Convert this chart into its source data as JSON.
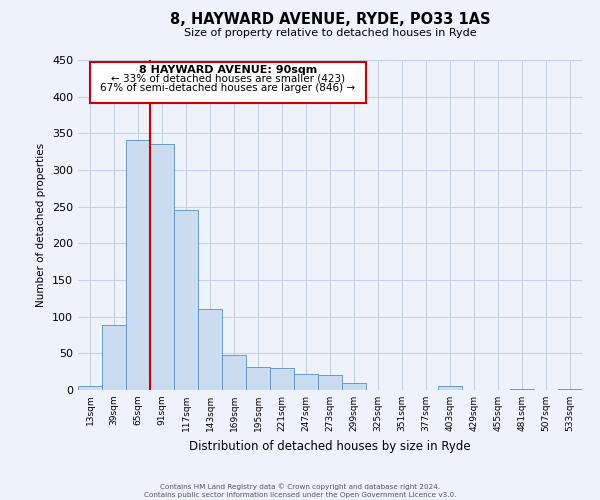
{
  "title": "8, HAYWARD AVENUE, RYDE, PO33 1AS",
  "subtitle": "Size of property relative to detached houses in Ryde",
  "xlabel": "Distribution of detached houses by size in Ryde",
  "ylabel": "Number of detached properties",
  "bar_color": "#ccdcf0",
  "bar_edge_color": "#5590c0",
  "bin_labels": [
    "13sqm",
    "39sqm",
    "65sqm",
    "91sqm",
    "117sqm",
    "143sqm",
    "169sqm",
    "195sqm",
    "221sqm",
    "247sqm",
    "273sqm",
    "299sqm",
    "325sqm",
    "351sqm",
    "377sqm",
    "403sqm",
    "429sqm",
    "455sqm",
    "481sqm",
    "507sqm",
    "533sqm"
  ],
  "bar_heights": [
    5,
    88,
    341,
    335,
    245,
    110,
    48,
    32,
    30,
    22,
    20,
    10,
    0,
    0,
    0,
    5,
    0,
    0,
    2,
    0,
    1
  ],
  "ylim": [
    0,
    450
  ],
  "yticks": [
    0,
    50,
    100,
    150,
    200,
    250,
    300,
    350,
    400,
    450
  ],
  "property_line_x": 3,
  "property_line_label": "8 HAYWARD AVENUE: 90sqm",
  "annotation_line1": "← 33% of detached houses are smaller (423)",
  "annotation_line2": "67% of semi-detached houses are larger (846) →",
  "box_color": "#ffffff",
  "box_edge_color": "#cc0000",
  "vline_color": "#cc0000",
  "footer1": "Contains HM Land Registry data © Crown copyright and database right 2024.",
  "footer2": "Contains public sector information licensed under the Open Government Licence v3.0.",
  "bg_color": "#eef2fa",
  "grid_color": "#c5cfe8"
}
